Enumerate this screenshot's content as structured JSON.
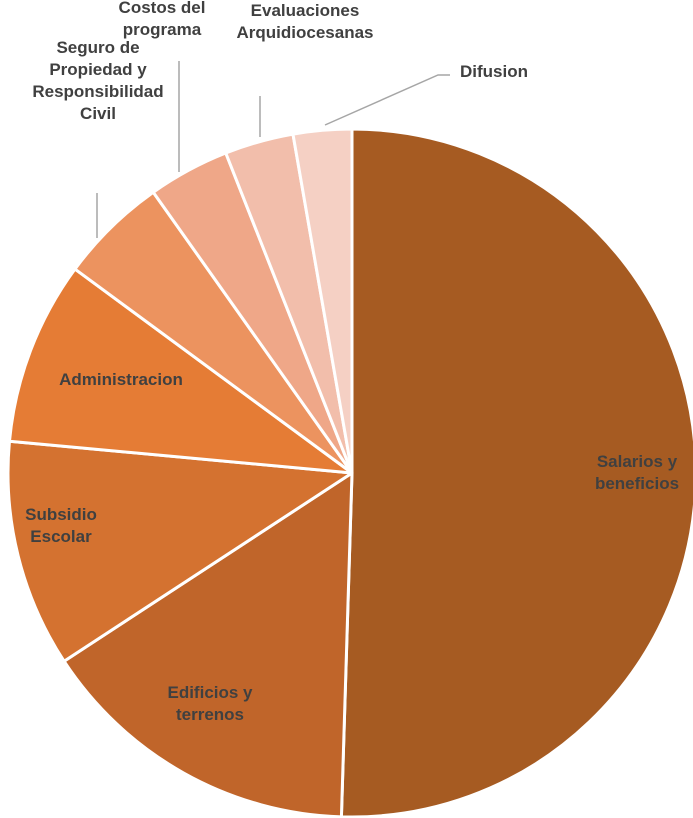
{
  "chart_data": {
    "type": "pie",
    "title": "",
    "legend": "none",
    "categories": [
      "Salarios y beneficios",
      "Edificios y terrenos",
      "Subsidio Escolar",
      "Administracion",
      "Seguro de Propiedad y Responsibilidad Civil",
      "Costos del programa",
      "Evaluaciones Arquidiocesanas",
      "Difusion"
    ],
    "values": [
      51.5,
      15.6,
      10.9,
      8.8,
      5.2,
      3.9,
      3.3,
      2.8
    ],
    "colors": [
      "#a65b22",
      "#c0652a",
      "#d47230",
      "#e57c35",
      "#ec935f",
      "#efa788",
      "#f2beab",
      "#f5d0c4"
    ],
    "labels": [
      [
        "Salarios y",
        "beneficios"
      ],
      [
        "Edificios y",
        "terrenos"
      ],
      [
        "Subsidio",
        "Escolar"
      ],
      [
        "Administracion"
      ],
      [
        "Seguro de",
        "Propiedad y",
        "Responsibilidad",
        "Civil"
      ],
      [
        "Costos del",
        "programa"
      ],
      [
        "Evaluaciones",
        "Arquidiocesanas"
      ],
      [
        "Difusion"
      ]
    ]
  }
}
